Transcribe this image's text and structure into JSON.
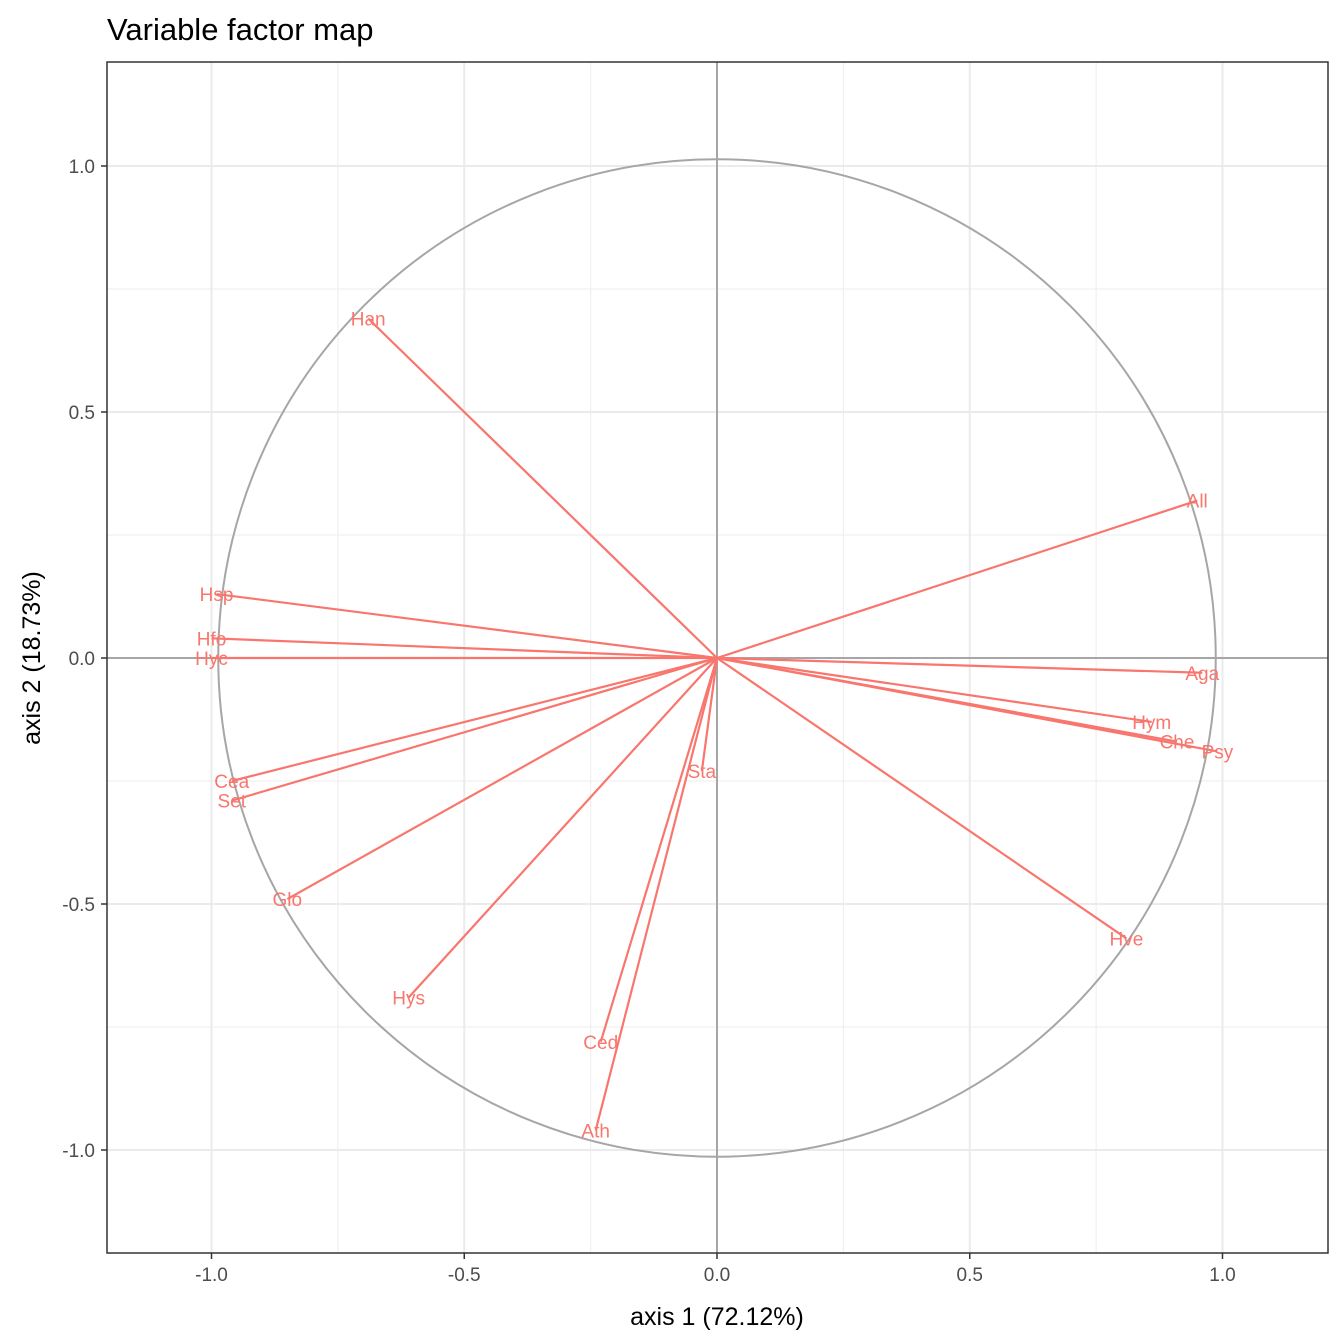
{
  "chart_data": {
    "type": "scatter",
    "title": "Variable factor map",
    "xlabel": "axis 1 (72.12%)",
    "ylabel": "axis 2 (18.73%)",
    "xlim": [
      -1.2,
      1.2
    ],
    "ylim": [
      -1.2,
      1.2
    ],
    "x_ticks": [
      "-1.0",
      "-0.5",
      "0.0",
      "0.5",
      "1.0"
    ],
    "y_ticks": [
      "-1.0",
      "-0.5",
      "0.0",
      "0.5",
      "1.0"
    ],
    "grid": true,
    "correlation_circle": true,
    "arrow_color": "#f8766d",
    "circle_color": "#a6a6a6",
    "variables": [
      {
        "name": "Han",
        "x": -0.69,
        "y": 0.69
      },
      {
        "name": "All",
        "x": 0.95,
        "y": 0.32
      },
      {
        "name": "Hsp",
        "x": -0.99,
        "y": 0.13
      },
      {
        "name": "Hfo",
        "x": -1.0,
        "y": 0.04
      },
      {
        "name": "Hyc",
        "x": -1.0,
        "y": 0.0
      },
      {
        "name": "Aga",
        "x": 0.96,
        "y": -0.03
      },
      {
        "name": "Hym",
        "x": 0.86,
        "y": -0.13
      },
      {
        "name": "Che",
        "x": 0.91,
        "y": -0.17
      },
      {
        "name": "Psy",
        "x": 0.99,
        "y": -0.19
      },
      {
        "name": "Cea",
        "x": -0.96,
        "y": -0.25
      },
      {
        "name": "Set",
        "x": -0.96,
        "y": -0.29
      },
      {
        "name": "Sta",
        "x": -0.03,
        "y": -0.23
      },
      {
        "name": "Glo",
        "x": -0.85,
        "y": -0.49
      },
      {
        "name": "Hve",
        "x": 0.81,
        "y": -0.57
      },
      {
        "name": "Hys",
        "x": -0.61,
        "y": -0.69
      },
      {
        "name": "Ced",
        "x": -0.23,
        "y": -0.78
      },
      {
        "name": "Ath",
        "x": -0.24,
        "y": -0.96
      }
    ]
  }
}
